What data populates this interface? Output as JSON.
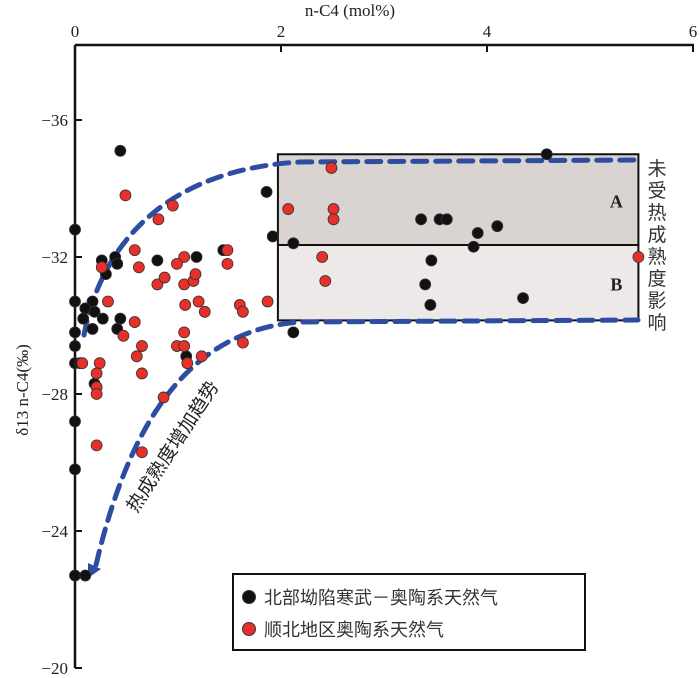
{
  "chart_data": {
    "type": "scatter",
    "xlabel": "n-C4 (mol%)",
    "ylabel": "δ13 n-C4(‰)",
    "xlim": [
      0,
      6
    ],
    "ylim": [
      -36,
      -20
    ],
    "y_inverted": true,
    "x_axis_position": "top",
    "x_ticks": [
      "0",
      "2",
      "4",
      "6"
    ],
    "y_ticks": [
      "−36",
      "−32",
      "−28",
      "−24",
      "−20"
    ],
    "grid": false,
    "legend_placement": "bottom-center",
    "series": [
      {
        "name": "北部坳陷寒武－奥陶系天然气",
        "color": "#111111",
        "points": [
          [
            0.44,
            -35.1
          ],
          [
            0.8,
            -31.9
          ],
          [
            1.18,
            -32.0
          ],
          [
            1.44,
            -32.2
          ],
          [
            0.39,
            -32.0
          ],
          [
            0.41,
            -31.8
          ],
          [
            0.26,
            -31.9
          ],
          [
            0.3,
            -31.5
          ],
          [
            0.17,
            -30.7
          ],
          [
            0.1,
            -30.5
          ],
          [
            0.19,
            -30.4
          ],
          [
            0.27,
            -30.2
          ],
          [
            0.08,
            -30.2
          ],
          [
            0.44,
            -30.2
          ],
          [
            0.17,
            -29.9
          ],
          [
            0.41,
            -29.9
          ],
          [
            0,
            -32.8
          ],
          [
            0,
            -30.7
          ],
          [
            0,
            -29.8
          ],
          [
            0,
            -29.4
          ],
          [
            0,
            -28.9
          ],
          [
            0.05,
            -28.9
          ],
          [
            0.19,
            -28.3
          ],
          [
            0,
            -27.2
          ],
          [
            0,
            -25.8
          ],
          [
            0,
            -22.7
          ],
          [
            0.1,
            -22.7
          ],
          [
            1.08,
            -29.1
          ],
          [
            4.58,
            -35.0
          ],
          [
            1.86,
            -33.9
          ],
          [
            1.92,
            -32.6
          ],
          [
            2.12,
            -32.4
          ],
          [
            3.36,
            -33.1
          ],
          [
            3.54,
            -33.1
          ],
          [
            3.61,
            -33.1
          ],
          [
            3.91,
            -32.7
          ],
          [
            4.1,
            -32.9
          ],
          [
            3.87,
            -32.3
          ],
          [
            3.46,
            -31.9
          ],
          [
            3.4,
            -31.2
          ],
          [
            3.45,
            -30.6
          ],
          [
            4.35,
            -30.8
          ],
          [
            2.12,
            -29.8
          ]
        ]
      },
      {
        "name": "顺北地区奥陶系天然气",
        "color": "#e8302a",
        "points": [
          [
            0.49,
            -33.8
          ],
          [
            0.95,
            -33.5
          ],
          [
            0.81,
            -33.1
          ],
          [
            0.58,
            -32.2
          ],
          [
            0.62,
            -31.7
          ],
          [
            0.26,
            -31.7
          ],
          [
            1.06,
            -32.0
          ],
          [
            0.99,
            -31.8
          ],
          [
            0.8,
            -31.2
          ],
          [
            0.87,
            -31.4
          ],
          [
            1.06,
            -31.2
          ],
          [
            1.15,
            -31.3
          ],
          [
            1.17,
            -31.5
          ],
          [
            1.48,
            -32.2
          ],
          [
            1.48,
            -31.8
          ],
          [
            1.07,
            -30.6
          ],
          [
            1.2,
            -30.7
          ],
          [
            1.26,
            -30.4
          ],
          [
            1.6,
            -30.6
          ],
          [
            1.63,
            -30.4
          ],
          [
            1.87,
            -30.7
          ],
          [
            0.32,
            -30.7
          ],
          [
            0.58,
            -30.1
          ],
          [
            1.06,
            -29.8
          ],
          [
            0.47,
            -29.7
          ],
          [
            0.65,
            -29.4
          ],
          [
            0.6,
            -29.1
          ],
          [
            0.99,
            -29.4
          ],
          [
            1.06,
            -29.4
          ],
          [
            1.09,
            -28.9
          ],
          [
            1.23,
            -29.1
          ],
          [
            1.63,
            -29.5
          ],
          [
            0.07,
            -28.9
          ],
          [
            0.24,
            -28.9
          ],
          [
            0.21,
            -28.6
          ],
          [
            0.65,
            -28.6
          ],
          [
            0.21,
            -28.2
          ],
          [
            0.21,
            -28.0
          ],
          [
            0.86,
            -27.9
          ],
          [
            0.21,
            -26.5
          ],
          [
            0.65,
            -26.3
          ],
          [
            2.49,
            -34.6
          ],
          [
            2.07,
            -33.4
          ],
          [
            2.51,
            -33.4
          ],
          [
            2.51,
            -33.1
          ],
          [
            2.4,
            -32.0
          ],
          [
            2.43,
            -31.3
          ],
          [
            5.47,
            -32.0
          ]
        ]
      }
    ],
    "regions": [
      {
        "label": "A",
        "x": [
          1.97,
          5.47
        ],
        "y": [
          -35.0,
          -32.35
        ],
        "color": "#d9d4d2"
      },
      {
        "label": "B",
        "x": [
          1.97,
          5.47
        ],
        "y": [
          -32.35,
          -30.15
        ],
        "color": "#ece9e8"
      }
    ],
    "annotations": {
      "unaffected": "未受热成熟度影响",
      "trend": "热成熟度增加趋势"
    },
    "curve_color": "#2d4da0"
  }
}
